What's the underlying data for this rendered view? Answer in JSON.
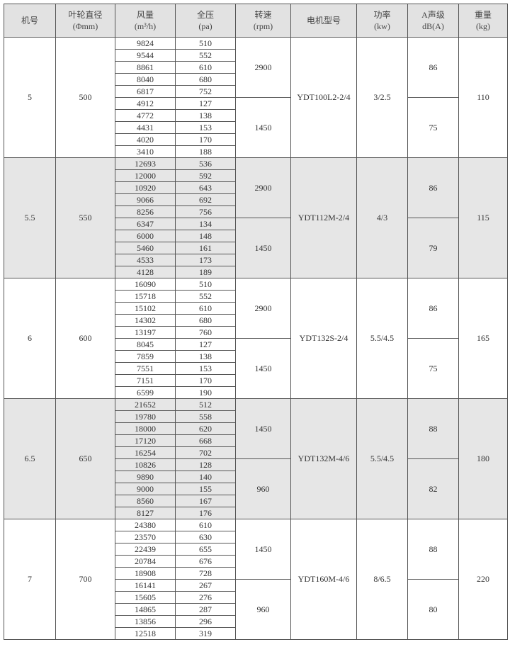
{
  "headers": [
    {
      "line1": "机号",
      "line2": ""
    },
    {
      "line1": "叶轮直径",
      "line2": "(Φmm)"
    },
    {
      "line1": "风量",
      "line2": "(m³/h)"
    },
    {
      "line1": "全压",
      "line2": "(pa)"
    },
    {
      "line1": "转速",
      "line2": "(rpm)"
    },
    {
      "line1": "电机型号",
      "line2": ""
    },
    {
      "line1": "功率",
      "line2": "(kw)"
    },
    {
      "line1": "A声级",
      "line2": "dB(A)"
    },
    {
      "line1": "重量",
      "line2": "(kg)"
    }
  ],
  "groups": [
    {
      "model": "5",
      "diameter": "500",
      "motor": "YDT100L2-2/4",
      "power": "3/2.5",
      "weight": "110",
      "shaded": false,
      "speeds": [
        {
          "rpm": "2900",
          "noise": "86",
          "rows": [
            [
              "9824",
              "510"
            ],
            [
              "9544",
              "552"
            ],
            [
              "8861",
              "610"
            ],
            [
              "8040",
              "680"
            ],
            [
              "6817",
              "752"
            ]
          ]
        },
        {
          "rpm": "1450",
          "noise": "75",
          "rows": [
            [
              "4912",
              "127"
            ],
            [
              "4772",
              "138"
            ],
            [
              "4431",
              "153"
            ],
            [
              "4020",
              "170"
            ],
            [
              "3410",
              "188"
            ]
          ]
        }
      ]
    },
    {
      "model": "5.5",
      "diameter": "550",
      "motor": "YDT112M-2/4",
      "power": "4/3",
      "weight": "115",
      "shaded": true,
      "speeds": [
        {
          "rpm": "2900",
          "noise": "86",
          "rows": [
            [
              "12693",
              "536"
            ],
            [
              "12000",
              "592"
            ],
            [
              "10920",
              "643"
            ],
            [
              "9066",
              "692"
            ],
            [
              "8256",
              "756"
            ]
          ]
        },
        {
          "rpm": "1450",
          "noise": "79",
          "rows": [
            [
              "6347",
              "134"
            ],
            [
              "6000",
              "148"
            ],
            [
              "5460",
              "161"
            ],
            [
              "4533",
              "173"
            ],
            [
              "4128",
              "189"
            ]
          ]
        }
      ]
    },
    {
      "model": "6",
      "diameter": "600",
      "motor": "YDT132S-2/4",
      "power": "5.5/4.5",
      "weight": "165",
      "shaded": false,
      "speeds": [
        {
          "rpm": "2900",
          "noise": "86",
          "rows": [
            [
              "16090",
              "510"
            ],
            [
              "15718",
              "552"
            ],
            [
              "15102",
              "610"
            ],
            [
              "14302",
              "680"
            ],
            [
              "13197",
              "760"
            ]
          ]
        },
        {
          "rpm": "1450",
          "noise": "75",
          "rows": [
            [
              "8045",
              "127"
            ],
            [
              "7859",
              "138"
            ],
            [
              "7551",
              "153"
            ],
            [
              "7151",
              "170"
            ],
            [
              "6599",
              "190"
            ]
          ]
        }
      ]
    },
    {
      "model": "6.5",
      "diameter": "650",
      "motor": "YDT132M-4/6",
      "power": "5.5/4.5",
      "weight": "180",
      "shaded": true,
      "speeds": [
        {
          "rpm": "1450",
          "noise": "88",
          "rows": [
            [
              "21652",
              "512"
            ],
            [
              "19780",
              "558"
            ],
            [
              "18000",
              "620"
            ],
            [
              "17120",
              "668"
            ],
            [
              "16254",
              "702"
            ]
          ]
        },
        {
          "rpm": "960",
          "noise": "82",
          "rows": [
            [
              "10826",
              "128"
            ],
            [
              "9890",
              "140"
            ],
            [
              "9000",
              "155"
            ],
            [
              "8560",
              "167"
            ],
            [
              "8127",
              "176"
            ]
          ]
        }
      ]
    },
    {
      "model": "7",
      "diameter": "700",
      "motor": "YDT160M-4/6",
      "power": "8/6.5",
      "weight": "220",
      "shaded": false,
      "speeds": [
        {
          "rpm": "1450",
          "noise": "88",
          "rows": [
            [
              "24380",
              "610"
            ],
            [
              "23570",
              "630"
            ],
            [
              "22439",
              "655"
            ],
            [
              "20784",
              "676"
            ],
            [
              "18908",
              "728"
            ]
          ]
        },
        {
          "rpm": "960",
          "noise": "80",
          "rows": [
            [
              "16141",
              "267"
            ],
            [
              "15605",
              "276"
            ],
            [
              "14865",
              "287"
            ],
            [
              "13856",
              "296"
            ],
            [
              "12518",
              "319"
            ]
          ]
        }
      ]
    }
  ]
}
